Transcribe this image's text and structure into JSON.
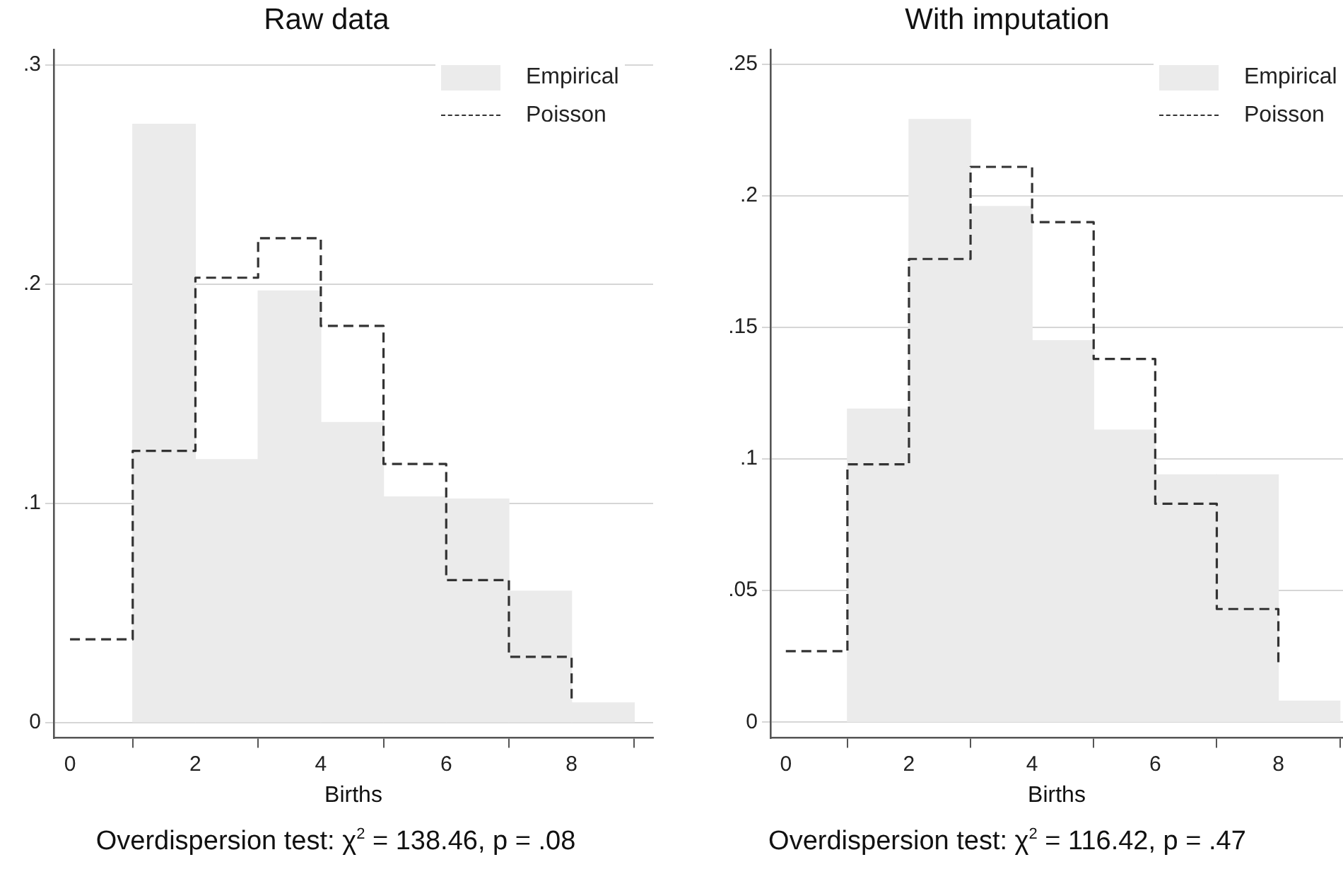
{
  "chart_data": [
    {
      "type": "histogram",
      "title": "Raw data",
      "xlabel": "Births",
      "annotations": [
        "Overdispersion test: χ$^{2}$ = 138.46, p = .08"
      ],
      "bins": [
        1,
        2,
        3,
        4,
        5,
        6,
        7,
        8,
        9
      ],
      "series": [
        {
          "name": "Empirical",
          "color": "#ebebeb",
          "values": [
            0.273,
            0.12,
            0.197,
            0.137,
            0.103,
            0.102,
            0.06,
            0.009
          ]
        },
        {
          "name": "Poisson",
          "type": "step",
          "color": "#333333",
          "line_style": "dashed",
          "x": [
            0,
            1,
            2,
            3,
            4,
            5,
            6,
            7,
            8
          ],
          "values": [
            0.038,
            0.124,
            0.203,
            0.221,
            0.181,
            0.118,
            0.065,
            0.03,
            0.011
          ]
        }
      ],
      "xlim": [
        -0.26,
        9.3
      ],
      "xticks": [
        0,
        2,
        4,
        6,
        8
      ],
      "ylim": [
        -0.007,
        0.307
      ],
      "yticks": [
        0,
        {
          "value": 0.1,
          "label": ".1"
        },
        {
          "value": 0.2,
          "label": ".2"
        },
        {
          "value": 0.3,
          "label": ".3"
        }
      ],
      "grid": "y",
      "legend": "top right"
    },
    {
      "type": "histogram",
      "title": "With imputation",
      "xlabel": "Births",
      "annotations": [
        "Overdispersion test: χ$^{2}$ = 116.42, p = .47"
      ],
      "bins": [
        1,
        2,
        3,
        4,
        5,
        6,
        7,
        8,
        9
      ],
      "series": [
        {
          "name": "Empirical",
          "color": "#ebebeb",
          "values": [
            0.119,
            0.229,
            0.196,
            0.145,
            0.111,
            0.094,
            0.094,
            0.008
          ]
        },
        {
          "name": "Poisson",
          "type": "step",
          "color": "#333333",
          "line_style": "dashed",
          "x": [
            0,
            1,
            2,
            3,
            4,
            5,
            6,
            7,
            8
          ],
          "values": [
            0.027,
            0.098,
            0.176,
            0.211,
            0.19,
            0.138,
            0.083,
            0.043,
            0.021
          ]
        }
      ],
      "xlim": [
        -0.25,
        9.05
      ],
      "xticks": [
        0,
        2,
        4,
        6,
        8
      ],
      "ylim": [
        -0.006,
        0.2555
      ],
      "yticks": [
        0,
        {
          "value": 0.05,
          "label": ".05"
        },
        {
          "value": 0.1,
          "label": ".1"
        },
        {
          "value": 0.15,
          "label": ".15"
        },
        {
          "value": 0.2,
          "label": ".2"
        },
        {
          "value": 0.25,
          "label": ".25"
        }
      ],
      "grid": "y",
      "legend": "top right"
    }
  ]
}
